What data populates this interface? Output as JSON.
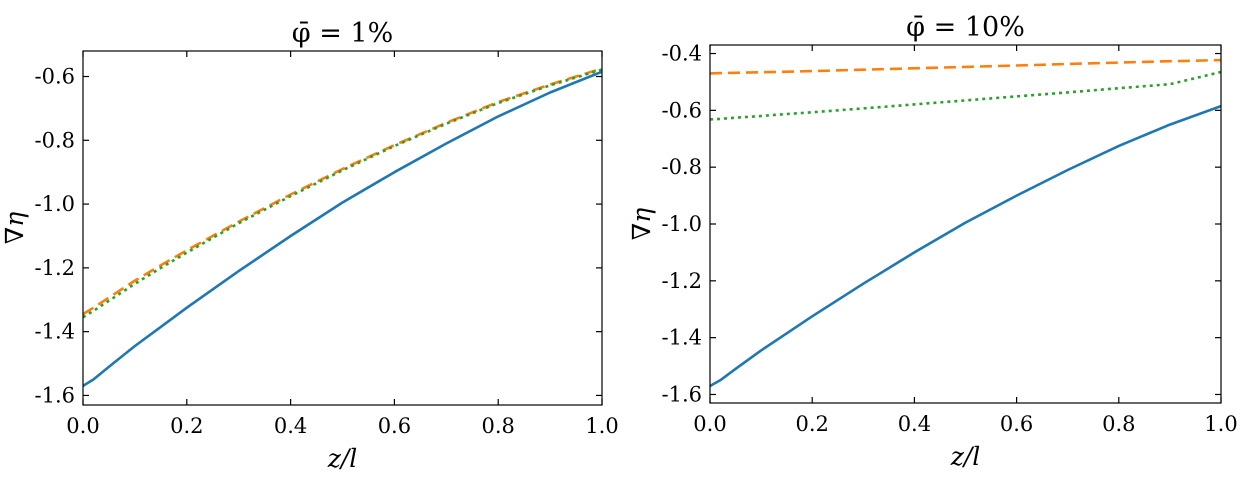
{
  "chart_data": [
    {
      "type": "line",
      "title": "φ̄ = 1%",
      "xlabel": "z/l",
      "ylabel": "∇η",
      "xlim": [
        0.0,
        1.0
      ],
      "ylim": [
        -1.63,
        -0.52
      ],
      "xticks": [
        0.0,
        0.2,
        0.4,
        0.6,
        0.8,
        1.0
      ],
      "xtick_labels": [
        "0.0",
        "0.2",
        "0.4",
        "0.6",
        "0.8",
        "1.0"
      ],
      "yticks": [
        -1.6,
        -1.4,
        -1.2,
        -1.0,
        -0.8,
        -0.6
      ],
      "ytick_labels": [
        "-1.6",
        "-1.4",
        "-1.2",
        "-1.0",
        "-0.8",
        "-0.6"
      ],
      "grid": false,
      "x": [
        0.0,
        0.02,
        0.05,
        0.1,
        0.15,
        0.2,
        0.3,
        0.4,
        0.5,
        0.6,
        0.7,
        0.8,
        0.9,
        1.0
      ],
      "series": [
        {
          "name": "solid",
          "style": "solid",
          "color": "#1f77b4",
          "values": [
            -1.57,
            -1.55,
            -1.51,
            -1.445,
            -1.385,
            -1.325,
            -1.21,
            -1.1,
            -0.995,
            -0.9,
            -0.81,
            -0.725,
            -0.65,
            -0.585
          ]
        },
        {
          "name": "dashed",
          "style": "dashed",
          "color": "#ff7f0e",
          "values": [
            -1.345,
            -1.325,
            -1.293,
            -1.24,
            -1.192,
            -1.145,
            -1.055,
            -0.97,
            -0.89,
            -0.815,
            -0.745,
            -0.68,
            -0.625,
            -0.575
          ]
        },
        {
          "name": "dotted",
          "style": "dotted",
          "color": "#2ca02c",
          "values": [
            -1.355,
            -1.335,
            -1.303,
            -1.25,
            -1.2,
            -1.152,
            -1.06,
            -0.975,
            -0.894,
            -0.818,
            -0.748,
            -0.683,
            -0.628,
            -0.578
          ]
        }
      ]
    },
    {
      "type": "line",
      "title": "φ̄ = 10%",
      "xlabel": "z/l",
      "ylabel": "∇η",
      "xlim": [
        0.0,
        1.0
      ],
      "ylim": [
        -1.63,
        -0.37
      ],
      "xticks": [
        0.0,
        0.2,
        0.4,
        0.6,
        0.8,
        1.0
      ],
      "xtick_labels": [
        "0.0",
        "0.2",
        "0.4",
        "0.6",
        "0.8",
        "1.0"
      ],
      "yticks": [
        -1.6,
        -1.4,
        -1.2,
        -1.0,
        -0.8,
        -0.6,
        -0.4
      ],
      "ytick_labels": [
        "-1.6",
        "-1.4",
        "-1.2",
        "-1.0",
        "-0.8",
        "-0.6",
        "-0.4"
      ],
      "grid": false,
      "x": [
        0.0,
        0.02,
        0.05,
        0.1,
        0.15,
        0.2,
        0.3,
        0.4,
        0.5,
        0.6,
        0.7,
        0.8,
        0.9,
        1.0
      ],
      "series": [
        {
          "name": "solid",
          "style": "solid",
          "color": "#1f77b4",
          "values": [
            -1.57,
            -1.55,
            -1.51,
            -1.445,
            -1.385,
            -1.325,
            -1.21,
            -1.1,
            -0.995,
            -0.9,
            -0.81,
            -0.725,
            -0.65,
            -0.585
          ]
        },
        {
          "name": "dashed",
          "style": "dashed",
          "color": "#ff7f0e",
          "values": [
            -0.47,
            -0.469,
            -0.468,
            -0.466,
            -0.464,
            -0.462,
            -0.457,
            -0.452,
            -0.447,
            -0.442,
            -0.437,
            -0.432,
            -0.427,
            -0.423
          ]
        },
        {
          "name": "dotted",
          "style": "dotted",
          "color": "#2ca02c",
          "values": [
            -0.632,
            -0.63,
            -0.626,
            -0.62,
            -0.613,
            -0.607,
            -0.593,
            -0.579,
            -0.565,
            -0.551,
            -0.537,
            -0.522,
            -0.508,
            -0.465
          ]
        }
      ]
    }
  ]
}
